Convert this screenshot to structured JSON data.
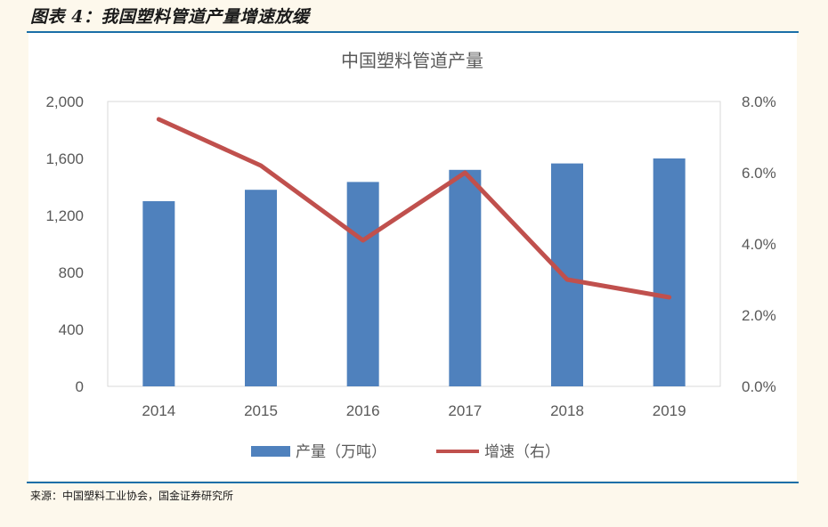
{
  "figure": {
    "title": "图表 4：我国塑料管道产量增速放缓",
    "source": "来源：中国塑料工业协会，国金证券研究所"
  },
  "colors": {
    "bar": "#4f81bd",
    "line": "#c0504d",
    "rule": "#1a6fa8",
    "axis_text": "#595959"
  },
  "chart_data": {
    "type": "bar",
    "title": "中国塑料管道产量",
    "categories": [
      "2014",
      "2015",
      "2016",
      "2017",
      "2018",
      "2019"
    ],
    "left_axis": {
      "min": 0,
      "max": 2000,
      "ticks": [
        0,
        400,
        800,
        1200,
        1600,
        2000
      ],
      "tick_labels": [
        "0",
        "400",
        "800",
        "1,200",
        "1,600",
        "2,000"
      ]
    },
    "right_axis": {
      "min": 0,
      "max": 8,
      "ticks": [
        0,
        2,
        4,
        6,
        8
      ],
      "tick_labels": [
        "0.0%",
        "2.0%",
        "4.0%",
        "6.0%",
        "8.0%"
      ]
    },
    "series": [
      {
        "name": "产量（万吨）",
        "type": "bar",
        "axis": "left",
        "values": [
          1300,
          1380,
          1435,
          1520,
          1565,
          1600
        ]
      },
      {
        "name": "增速（右）",
        "type": "line",
        "axis": "right",
        "values": [
          7.5,
          6.2,
          4.1,
          6.0,
          3.0,
          2.5
        ]
      }
    ],
    "grid": false,
    "legend_position": "bottom"
  }
}
